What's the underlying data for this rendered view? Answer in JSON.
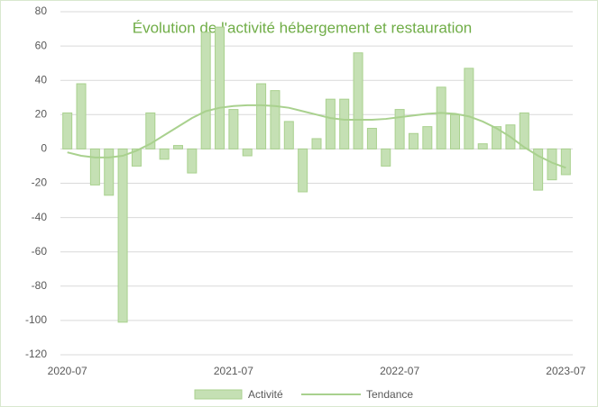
{
  "chart_data": {
    "type": "bar",
    "title": "Évolution de l'activité hébergement et restauration",
    "categories": [
      "2020-07",
      null,
      null,
      null,
      null,
      null,
      null,
      null,
      null,
      null,
      null,
      null,
      "2021-07",
      null,
      null,
      null,
      null,
      null,
      null,
      null,
      null,
      null,
      null,
      null,
      "2022-07",
      null,
      null,
      null,
      null,
      null,
      null,
      null,
      null,
      null,
      null,
      null,
      "2023-07"
    ],
    "series": [
      {
        "name": "Activité",
        "type": "bar",
        "color": "#c5e0b4",
        "values": [
          21,
          38,
          -21,
          -27,
          -101,
          -10,
          21,
          -6,
          2,
          -14,
          68,
          71,
          23,
          -4,
          38,
          34,
          16,
          -25,
          6,
          29,
          29,
          56,
          12,
          -10,
          23,
          9,
          13,
          36,
          20,
          47,
          3,
          13,
          14,
          21,
          -24,
          -18,
          -15
        ]
      },
      {
        "name": "Tendance",
        "type": "line",
        "color": "#a9d18e",
        "values": [
          -2,
          -4,
          -5,
          -5,
          -4,
          -1,
          3,
          8,
          13,
          18,
          22,
          24,
          25,
          25.5,
          25.5,
          25,
          24,
          22,
          20,
          18,
          17,
          17,
          17,
          17.5,
          18.5,
          19.5,
          20.5,
          21,
          20.5,
          19,
          16,
          12,
          7,
          1,
          -4,
          -8,
          -11
        ]
      }
    ],
    "ylim": [
      -120,
      80
    ],
    "yticks": [
      -120,
      -100,
      -80,
      -60,
      -40,
      -20,
      0,
      20,
      40,
      60,
      80
    ],
    "grid": true,
    "legend": "bottom"
  }
}
